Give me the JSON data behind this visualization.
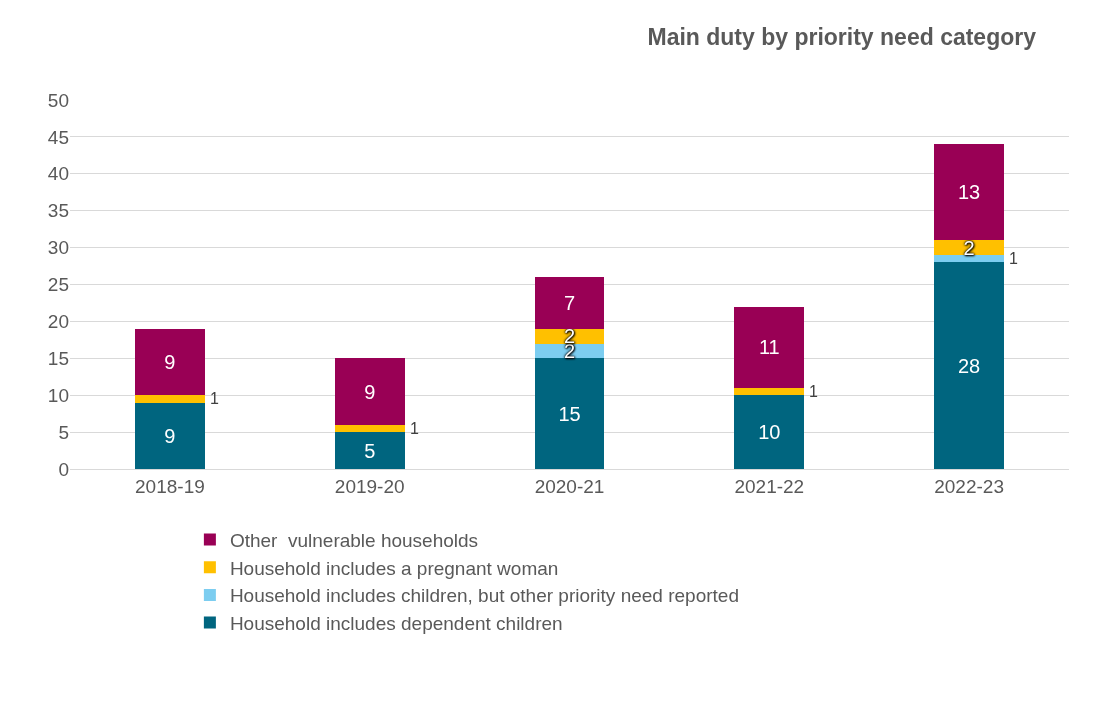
{
  "chart_data": {
    "type": "bar",
    "stacked": true,
    "title": "Main duty by priority need category",
    "categories": [
      "2018-19",
      "2019-20",
      "2020-21",
      "2021-22",
      "2022-23"
    ],
    "series": [
      {
        "name": "Household includes dependent children",
        "color": "#00657f",
        "values": [
          9,
          5,
          15,
          10,
          28
        ]
      },
      {
        "name": "Household includes children, but other priority need reported",
        "color": "#7ccdf0",
        "values": [
          null,
          null,
          2,
          null,
          1
        ]
      },
      {
        "name": "Household includes a pregnant woman",
        "color": "#ffc000",
        "values": [
          1,
          1,
          2,
          1,
          2
        ]
      },
      {
        "name": "Other  vulnerable households",
        "color": "#990055",
        "values": [
          9,
          9,
          7,
          11,
          13
        ]
      }
    ],
    "ylim": [
      0,
      50
    ],
    "yticks": [
      0,
      5,
      10,
      15,
      20,
      25,
      30,
      35,
      40,
      45,
      50
    ],
    "grid": "y",
    "legend": "bottom",
    "data_labels": true
  }
}
